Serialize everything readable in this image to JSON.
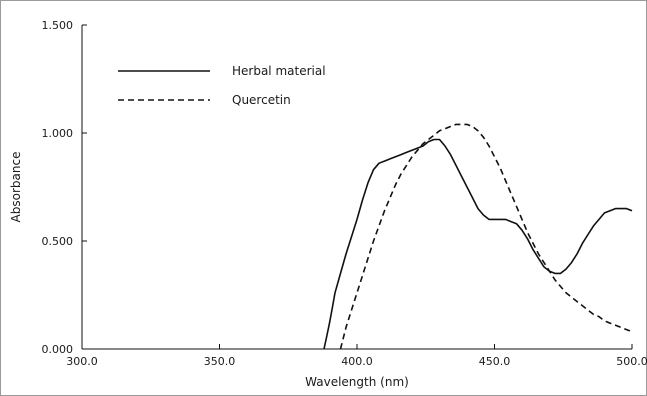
{
  "chart_data": {
    "type": "line",
    "title": "",
    "xlabel": "Wavelength (nm)",
    "ylabel": "Absorbance",
    "xlim": [
      300,
      500
    ],
    "ylim": [
      0,
      1.5
    ],
    "x_ticks": [
      "300.0",
      "350.0",
      "400.0",
      "450.0",
      "500.0"
    ],
    "y_ticks": [
      "0.000",
      "0.500",
      "1.000",
      "1.500"
    ],
    "grid": false,
    "legend_placement": "top-left",
    "series": [
      {
        "name": "Herbal material",
        "style": "solid",
        "color": "#111111",
        "points": [
          [
            388,
            0.0
          ],
          [
            389,
            0.06
          ],
          [
            390,
            0.12
          ],
          [
            391,
            0.19
          ],
          [
            392,
            0.26
          ],
          [
            394,
            0.35
          ],
          [
            396,
            0.44
          ],
          [
            398,
            0.52
          ],
          [
            400,
            0.6
          ],
          [
            402,
            0.69
          ],
          [
            404,
            0.77
          ],
          [
            406,
            0.83
          ],
          [
            408,
            0.86
          ],
          [
            410,
            0.87
          ],
          [
            412,
            0.88
          ],
          [
            414,
            0.89
          ],
          [
            416,
            0.9
          ],
          [
            418,
            0.91
          ],
          [
            420,
            0.92
          ],
          [
            422,
            0.93
          ],
          [
            424,
            0.94
          ],
          [
            426,
            0.96
          ],
          [
            428,
            0.97
          ],
          [
            430,
            0.97
          ],
          [
            432,
            0.94
          ],
          [
            434,
            0.9
          ],
          [
            436,
            0.85
          ],
          [
            438,
            0.8
          ],
          [
            440,
            0.75
          ],
          [
            442,
            0.7
          ],
          [
            444,
            0.65
          ],
          [
            446,
            0.62
          ],
          [
            448,
            0.6
          ],
          [
            450,
            0.6
          ],
          [
            452,
            0.6
          ],
          [
            454,
            0.6
          ],
          [
            456,
            0.59
          ],
          [
            458,
            0.58
          ],
          [
            460,
            0.55
          ],
          [
            462,
            0.51
          ],
          [
            464,
            0.46
          ],
          [
            466,
            0.42
          ],
          [
            468,
            0.38
          ],
          [
            470,
            0.36
          ],
          [
            472,
            0.35
          ],
          [
            474,
            0.35
          ],
          [
            476,
            0.37
          ],
          [
            478,
            0.4
          ],
          [
            480,
            0.44
          ],
          [
            482,
            0.49
          ],
          [
            484,
            0.53
          ],
          [
            486,
            0.57
          ],
          [
            488,
            0.6
          ],
          [
            490,
            0.63
          ],
          [
            492,
            0.64
          ],
          [
            494,
            0.65
          ],
          [
            496,
            0.65
          ],
          [
            498,
            0.65
          ],
          [
            500,
            0.64
          ]
        ]
      },
      {
        "name": "Quercetin",
        "style": "dashed",
        "color": "#111111",
        "points": [
          [
            394,
            0.0
          ],
          [
            396,
            0.1
          ],
          [
            398,
            0.18
          ],
          [
            400,
            0.26
          ],
          [
            402,
            0.34
          ],
          [
            404,
            0.42
          ],
          [
            406,
            0.5
          ],
          [
            408,
            0.57
          ],
          [
            410,
            0.64
          ],
          [
            412,
            0.7
          ],
          [
            414,
            0.76
          ],
          [
            416,
            0.81
          ],
          [
            418,
            0.85
          ],
          [
            420,
            0.89
          ],
          [
            422,
            0.92
          ],
          [
            424,
            0.95
          ],
          [
            426,
            0.97
          ],
          [
            428,
            0.99
          ],
          [
            430,
            1.01
          ],
          [
            432,
            1.02
          ],
          [
            434,
            1.03
          ],
          [
            436,
            1.04
          ],
          [
            438,
            1.04
          ],
          [
            440,
            1.04
          ],
          [
            442,
            1.03
          ],
          [
            444,
            1.01
          ],
          [
            446,
            0.98
          ],
          [
            448,
            0.94
          ],
          [
            450,
            0.89
          ],
          [
            452,
            0.84
          ],
          [
            454,
            0.78
          ],
          [
            456,
            0.72
          ],
          [
            458,
            0.66
          ],
          [
            460,
            0.6
          ],
          [
            462,
            0.54
          ],
          [
            464,
            0.49
          ],
          [
            466,
            0.44
          ],
          [
            468,
            0.4
          ],
          [
            470,
            0.36
          ],
          [
            472,
            0.32
          ],
          [
            474,
            0.29
          ],
          [
            476,
            0.26
          ],
          [
            478,
            0.24
          ],
          [
            480,
            0.22
          ],
          [
            482,
            0.2
          ],
          [
            484,
            0.18
          ],
          [
            486,
            0.16
          ],
          [
            488,
            0.15
          ],
          [
            490,
            0.13
          ],
          [
            492,
            0.12
          ],
          [
            494,
            0.11
          ],
          [
            496,
            0.1
          ],
          [
            498,
            0.09
          ],
          [
            500,
            0.08
          ]
        ]
      }
    ]
  }
}
